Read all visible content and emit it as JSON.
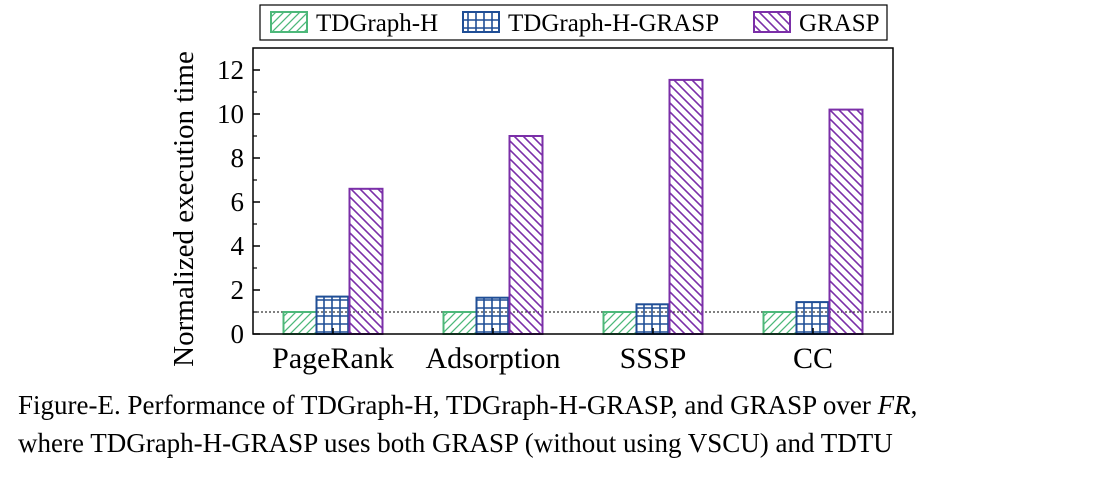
{
  "chart_data": {
    "type": "bar",
    "categories": [
      "PageRank",
      "Adsorption",
      "SSSP",
      "CC"
    ],
    "series": [
      {
        "name": "TDGraph-H",
        "values": [
          1.0,
          1.0,
          1.0,
          1.0
        ]
      },
      {
        "name": "TDGraph-H-GRASP",
        "values": [
          1.7,
          1.65,
          1.35,
          1.45
        ]
      },
      {
        "name": "GRASP",
        "values": [
          6.6,
          9.0,
          11.55,
          10.2
        ]
      }
    ],
    "ylabel": "Normalized execution time",
    "xlabel": "",
    "ylim": [
      0,
      13
    ],
    "yticks": [
      0,
      2,
      4,
      6,
      8,
      10,
      12
    ],
    "reference_line": 1,
    "legend_position": "top",
    "colors": {
      "TDGraph-H": "#4db87a",
      "TDGraph-H-GRASP": "#1f4e96",
      "GRASP": "#7b2fa8"
    }
  },
  "caption": {
    "line1_prefix": "Figure-E. Performance of TDGraph-H, TDGraph-H-GRASP, and GRASP over ",
    "line1_italic": "FR",
    "line1_suffix": ",",
    "line2": "where TDGraph-H-GRASP uses both GRASP (without using VSCU) and TDTU"
  }
}
